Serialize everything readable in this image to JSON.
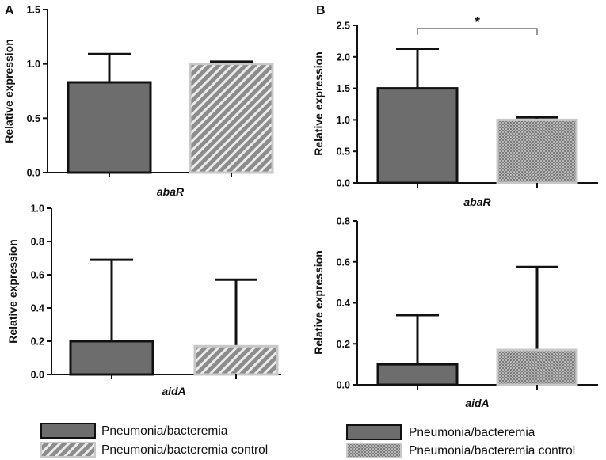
{
  "colors": {
    "pneumonia_fill": "#6d6d6d",
    "pneumonia_stroke": "#111111",
    "control_fill": "#8a8a8a",
    "control_stroke": "#c8c8c8",
    "axis": "#111111"
  },
  "panels": {
    "A": {
      "label": "A"
    },
    "B": {
      "label": "B"
    }
  },
  "legend": {
    "left": {
      "pneumonia": "Pneumonia/bacteremia",
      "control": "Pneumonia/bacteremia control"
    },
    "right": {
      "pneumonia": "Pneumonia/bacteremia",
      "control": "Pneumonia/bacteremia control"
    }
  },
  "chart_data": [
    {
      "id": "A-abaR",
      "panel": "A",
      "type": "bar",
      "pattern": "diagonal",
      "categories": [
        "Pneumonia/bacteremia",
        "Pneumonia/bacteremia control"
      ],
      "values": [
        0.83,
        1.0
      ],
      "errors": [
        0.26,
        0.02
      ],
      "ylim": [
        0,
        1.5
      ],
      "yticks": [
        "0.0",
        "0.5",
        "1.0",
        "1.5"
      ],
      "xlabel": "abaR",
      "ylabel": "Relative expression"
    },
    {
      "id": "A-aidA",
      "panel": "A",
      "type": "bar",
      "pattern": "diagonal",
      "categories": [
        "Pneumonia/bacteremia",
        "Pneumonia/bacteremia control"
      ],
      "values": [
        0.2,
        0.17
      ],
      "errors": [
        0.49,
        0.4
      ],
      "ylim": [
        0,
        1.0
      ],
      "yticks": [
        "0.0",
        "0.2",
        "0.4",
        "0.6",
        "0.8",
        "1.0"
      ],
      "xlabel": "aidA",
      "ylabel": "Relative expression"
    },
    {
      "id": "B-abaR",
      "panel": "B",
      "type": "bar",
      "pattern": "checker",
      "categories": [
        "Pneumonia/bacteremia",
        "Pneumonia/bacteremia control"
      ],
      "values": [
        1.5,
        1.0
      ],
      "errors": [
        0.63,
        0.04
      ],
      "ylim": [
        0,
        2.5
      ],
      "yticks": [
        "0.0",
        "0.5",
        "1.0",
        "1.5",
        "2.0",
        "2.5"
      ],
      "xlabel": "abaR",
      "ylabel": "Relative expression",
      "significance": {
        "label": "*",
        "y": 2.45
      }
    },
    {
      "id": "B-aidA",
      "panel": "B",
      "type": "bar",
      "pattern": "checker",
      "categories": [
        "Pneumonia/bacteremia",
        "Pneumonia/bacteremia control"
      ],
      "values": [
        0.1,
        0.17
      ],
      "errors": [
        0.24,
        0.405
      ],
      "ylim": [
        0,
        0.8
      ],
      "yticks": [
        "0.0",
        "0.2",
        "0.4",
        "0.6",
        "0.8"
      ],
      "xlabel": "aidA",
      "ylabel": "Relative expression"
    }
  ]
}
